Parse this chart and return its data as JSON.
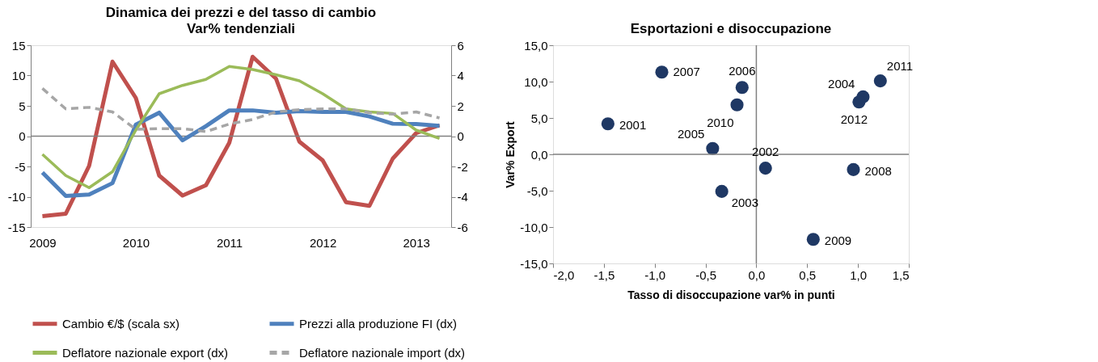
{
  "chart_data": [
    {
      "type": "line",
      "title": "Dinamica dei prezzi e del tasso di cambio",
      "subtitle": "Var% tendenziali",
      "categories": [
        "2009",
        null,
        null,
        null,
        "2010",
        null,
        null,
        null,
        "2011",
        null,
        null,
        null,
        "2012",
        null,
        null,
        null,
        "2013",
        null
      ],
      "ylim": [
        -15,
        15
      ],
      "yticks": [
        -15,
        -10,
        -5,
        0,
        5,
        10,
        15
      ],
      "y2lim": [
        -6,
        6
      ],
      "y2ticks": [
        -6,
        -4,
        -2,
        0,
        2,
        4,
        6
      ],
      "grid": false,
      "legend": "bottom",
      "marker": "none",
      "ref_lines": [
        {
          "axis": "y",
          "value": 0,
          "color": "#808080"
        }
      ],
      "series": [
        {
          "name": "Cambio €/$ (scala sx)",
          "color": "#c0504d",
          "line_style": "solid",
          "values": [
            -13.2,
            -12.8,
            -4.9,
            12.3,
            6.3,
            -6.5,
            -9.8,
            -8.1,
            -1.1,
            13.1,
            9.5,
            -0.9,
            -4.0,
            -10.9,
            -11.5,
            -3.7,
            0.5,
            1.8
          ]
        },
        {
          "name": "Prezzi alla produzione FI (dx)",
          "color": "#4f81bd",
          "line_style": "solid",
          "axis": "y2",
          "values": [
            -2.4,
            -3.95,
            -3.85,
            -3.1,
            0.76,
            1.55,
            -0.27,
            0.66,
            1.7,
            1.7,
            1.55,
            1.65,
            1.6,
            1.6,
            1.3,
            0.82,
            0.8,
            0.68
          ]
        },
        {
          "name": "Deflatore nazionale export (dx)",
          "color": "#9bbb59",
          "line_style": "solid",
          "axis": "y2",
          "values": [
            -1.2,
            -2.6,
            -3.4,
            -2.35,
            0.4,
            2.8,
            3.35,
            3.75,
            4.6,
            4.4,
            4.05,
            3.65,
            2.8,
            1.8,
            1.6,
            1.5,
            0.4,
            -0.15
          ]
        },
        {
          "name": "Deflatore nazionale import (dx)",
          "color": "#a6a6a6",
          "line_style": "dashed",
          "axis": "y2",
          "values": [
            3.15,
            1.8,
            1.9,
            1.6,
            0.45,
            0.5,
            0.5,
            0.3,
            0.8,
            1.1,
            1.6,
            1.75,
            1.8,
            1.8,
            1.55,
            1.45,
            1.6,
            1.2
          ]
        }
      ]
    },
    {
      "type": "scatter",
      "title": "Esportazioni e disoccupazione",
      "xlabel": "Tasso di disoccupazione var% in punti",
      "ylabel": "Var% Export",
      "color": "#1f3864",
      "marker": "circle",
      "grid": false,
      "x": [
        -1.46,
        0.09,
        -0.34,
        1.05,
        -0.43,
        -0.14,
        -0.93,
        0.955,
        0.56,
        -0.19,
        1.22,
        1.01
      ],
      "values": [
        4.2,
        -1.9,
        -5.1,
        7.9,
        0.8,
        9.2,
        11.3,
        -2.1,
        -11.7,
        6.8,
        10.1,
        7.2
      ],
      "xlim": [
        -2,
        1.5
      ],
      "xticks": [
        {
          "value": -2,
          "label": "-2,0"
        },
        {
          "value": -1.5,
          "label": "-1,5"
        },
        {
          "value": -1,
          "label": "-1,0"
        },
        {
          "value": -0.5,
          "label": "-0,5"
        },
        {
          "value": 0,
          "label": "0,0"
        },
        {
          "value": 0.5,
          "label": "0,5"
        },
        {
          "value": 1,
          "label": "1,0"
        },
        {
          "value": 1.5,
          "label": "1,5"
        }
      ],
      "ylim": [
        -15,
        15
      ],
      "yticks": [
        {
          "value": -15,
          "label": "-15,0"
        },
        {
          "value": -10,
          "label": "-10,0"
        },
        {
          "value": -5,
          "label": "-5,0"
        },
        {
          "value": 0,
          "label": "0,0"
        },
        {
          "value": 5,
          "label": "5,0"
        },
        {
          "value": 10,
          "label": "10,0"
        },
        {
          "value": 15,
          "label": "15,0"
        }
      ],
      "ref_lines": [
        {
          "axis": "x",
          "value": 0,
          "color": "#808080"
        },
        {
          "axis": "y",
          "value": 0,
          "color": "#808080"
        }
      ],
      "annotations": [
        {
          "text": "2001",
          "x": -1.46,
          "y": 4.2
        },
        {
          "text": "2002",
          "x": 0.09,
          "y": -1.9
        },
        {
          "text": "2003",
          "x": -0.34,
          "y": -5.1
        },
        {
          "text": "2004",
          "x": 1.05,
          "y": 7.9
        },
        {
          "text": "2005",
          "x": -0.43,
          "y": 0.8
        },
        {
          "text": "2006",
          "x": -0.14,
          "y": 9.2
        },
        {
          "text": "2007",
          "x": -0.93,
          "y": 11.3
        },
        {
          "text": "2008",
          "x": 0.955,
          "y": -2.1
        },
        {
          "text": "2009",
          "x": 0.56,
          "y": -11.7
        },
        {
          "text": "2010",
          "x": -0.19,
          "y": 6.8
        },
        {
          "text": "2011",
          "x": 1.22,
          "y": 10.1
        },
        {
          "text": "2012",
          "x": 1.01,
          "y": 7.2
        }
      ]
    }
  ]
}
